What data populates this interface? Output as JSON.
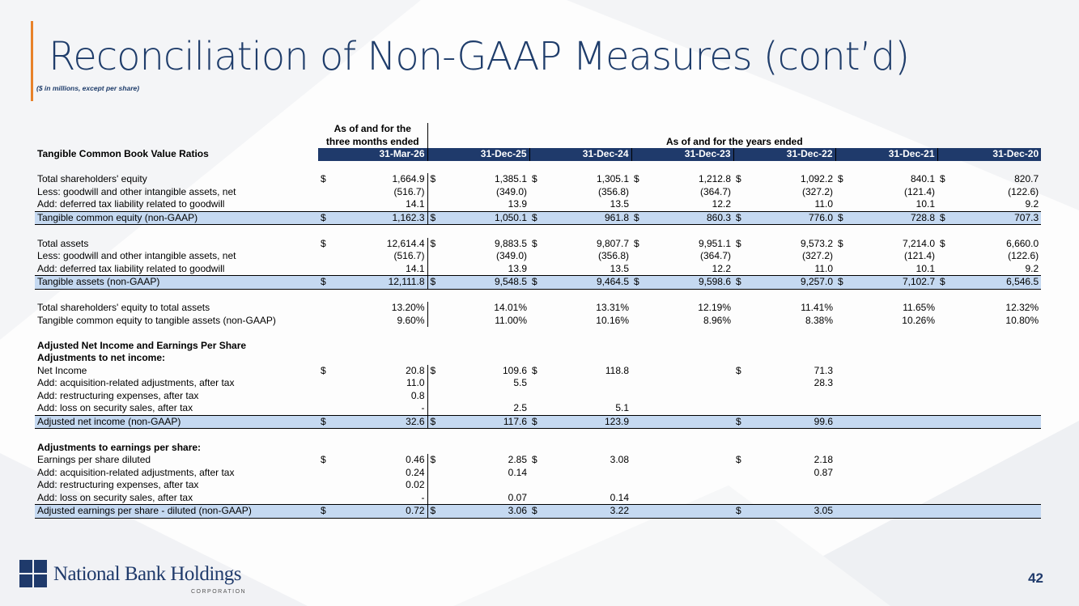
{
  "slide": {
    "title": "Reconciliation of Non-GAAP Measures (cont’d)",
    "subtitle": "($ in millions, except per share)",
    "page_number": "42",
    "accent_color": "#e8822a",
    "brand_color": "#1f3a6b"
  },
  "logo": {
    "name": "National Bank Holdings",
    "corp": "CORPORATION"
  },
  "table": {
    "header_group_1": "As of and for the",
    "header_group_1b": "three months ended",
    "header_group_2": "As of and for the years ended",
    "section_title": "Tangible Common Book Value Ratios",
    "dates": [
      "31-Mar-26",
      "31-Dec-25",
      "31-Dec-24",
      "31-Dec-23",
      "31-Dec-22",
      "31-Dec-21",
      "31-Dec-20"
    ],
    "rows": {
      "r1": {
        "label": "Total shareholders' equity",
        "d": [
          "$",
          "$",
          "$",
          "$",
          "$",
          "$",
          "$"
        ],
        "v": [
          "1,664.9",
          "1,385.1",
          "1,305.1",
          "1,212.8",
          "1,092.2",
          "840.1",
          "820.7"
        ]
      },
      "r2": {
        "label": "Less: goodwill and other intangible assets, net",
        "v": [
          "(516.7)",
          "(349.0)",
          "(356.8)",
          "(364.7)",
          "(327.2)",
          "(121.4)",
          "(122.6)"
        ]
      },
      "r3": {
        "label": "Add: deferred tax liability related to goodwill",
        "v": [
          "14.1",
          "13.9",
          "13.5",
          "12.2",
          "11.0",
          "10.1",
          "9.2"
        ]
      },
      "r4": {
        "label": "Tangible common equity (non-GAAP)",
        "d": [
          "$",
          "$",
          "$",
          "$",
          "$",
          "$",
          "$"
        ],
        "v": [
          "1,162.3",
          "1,050.1",
          "961.8",
          "860.3",
          "776.0",
          "728.8",
          "707.3"
        ]
      },
      "r5": {
        "label": "Total assets",
        "d": [
          "$",
          "$",
          "$",
          "$",
          "$",
          "$",
          "$"
        ],
        "v": [
          "12,614.4",
          "9,883.5",
          "9,807.7",
          "9,951.1",
          "9,573.2",
          "7,214.0",
          "6,660.0"
        ]
      },
      "r6": {
        "label": "Less: goodwill and other intangible assets, net",
        "v": [
          "(516.7)",
          "(349.0)",
          "(356.8)",
          "(364.7)",
          "(327.2)",
          "(121.4)",
          "(122.6)"
        ]
      },
      "r7": {
        "label": "Add: deferred tax liability related to goodwill",
        "v": [
          "14.1",
          "13.9",
          "13.5",
          "12.2",
          "11.0",
          "10.1",
          "9.2"
        ]
      },
      "r8": {
        "label": "Tangible assets (non-GAAP)",
        "d": [
          "$",
          "$",
          "$",
          "$",
          "$",
          "$",
          "$"
        ],
        "v": [
          "12,111.8",
          "9,548.5",
          "9,464.5",
          "9,598.6",
          "9,257.0",
          "7,102.7",
          "6,546.5"
        ]
      },
      "r9": {
        "label": "Total shareholders' equity to total assets",
        "v": [
          "13.20%",
          "14.01%",
          "13.31%",
          "12.19%",
          "11.41%",
          "11.65%",
          "12.32%"
        ]
      },
      "r10": {
        "label": "Tangible common equity to tangible assets (non-GAAP)",
        "v": [
          "9.60%",
          "11.00%",
          "10.16%",
          "8.96%",
          "8.38%",
          "10.26%",
          "10.80%"
        ]
      },
      "h1": {
        "label": "Adjusted Net Income and Earnings Per Share"
      },
      "h2": {
        "label": "Adjustments to net income:"
      },
      "r11": {
        "label": "Net Income",
        "d": [
          "$",
          "$",
          "$",
          "",
          "$",
          "",
          ""
        ],
        "v": [
          "20.8",
          "109.6",
          "118.8",
          "",
          "71.3",
          "",
          ""
        ]
      },
      "r12": {
        "label": "Add: acquisition-related adjustments, after tax",
        "v": [
          "11.0",
          "5.5",
          "",
          "",
          "28.3",
          "",
          ""
        ]
      },
      "r13": {
        "label": "Add: restructuring expenses, after tax",
        "v": [
          "0.8",
          "",
          "",
          "",
          "",
          "",
          ""
        ]
      },
      "r14": {
        "label": "Add: loss on security sales, after tax",
        "v": [
          "-",
          "2.5",
          "5.1",
          "",
          "",
          "",
          ""
        ]
      },
      "r15": {
        "label": "Adjusted net income (non-GAAP)",
        "d": [
          "$",
          "$",
          "$",
          "",
          "$",
          "",
          ""
        ],
        "v": [
          "32.6",
          "117.6",
          "123.9",
          "",
          "99.6",
          "",
          ""
        ]
      },
      "h3": {
        "label": "Adjustments to earnings per share:"
      },
      "r16": {
        "label": "Earnings per share diluted",
        "d": [
          "$",
          "$",
          "$",
          "",
          "$",
          "",
          ""
        ],
        "v": [
          "0.46",
          "2.85",
          "3.08",
          "",
          "2.18",
          "",
          ""
        ]
      },
      "r17": {
        "label": "Add: acquisition-related adjustments, after tax",
        "v": [
          "0.24",
          "0.14",
          "",
          "",
          "0.87",
          "",
          ""
        ]
      },
      "r18": {
        "label": "Add: restructuring expenses, after tax",
        "v": [
          "0.02",
          "",
          "",
          "",
          "",
          "",
          ""
        ]
      },
      "r19": {
        "label": "Add: loss on security sales, after tax",
        "v": [
          "-",
          "0.07",
          "0.14",
          "",
          "",
          "",
          ""
        ]
      },
      "r20": {
        "label": "Adjusted earnings per share - diluted (non-GAAP)",
        "d": [
          "$",
          "$",
          "$",
          "",
          "$",
          "",
          ""
        ],
        "v": [
          "0.72",
          "3.06",
          "3.22",
          "",
          "3.05",
          "",
          ""
        ]
      }
    }
  }
}
